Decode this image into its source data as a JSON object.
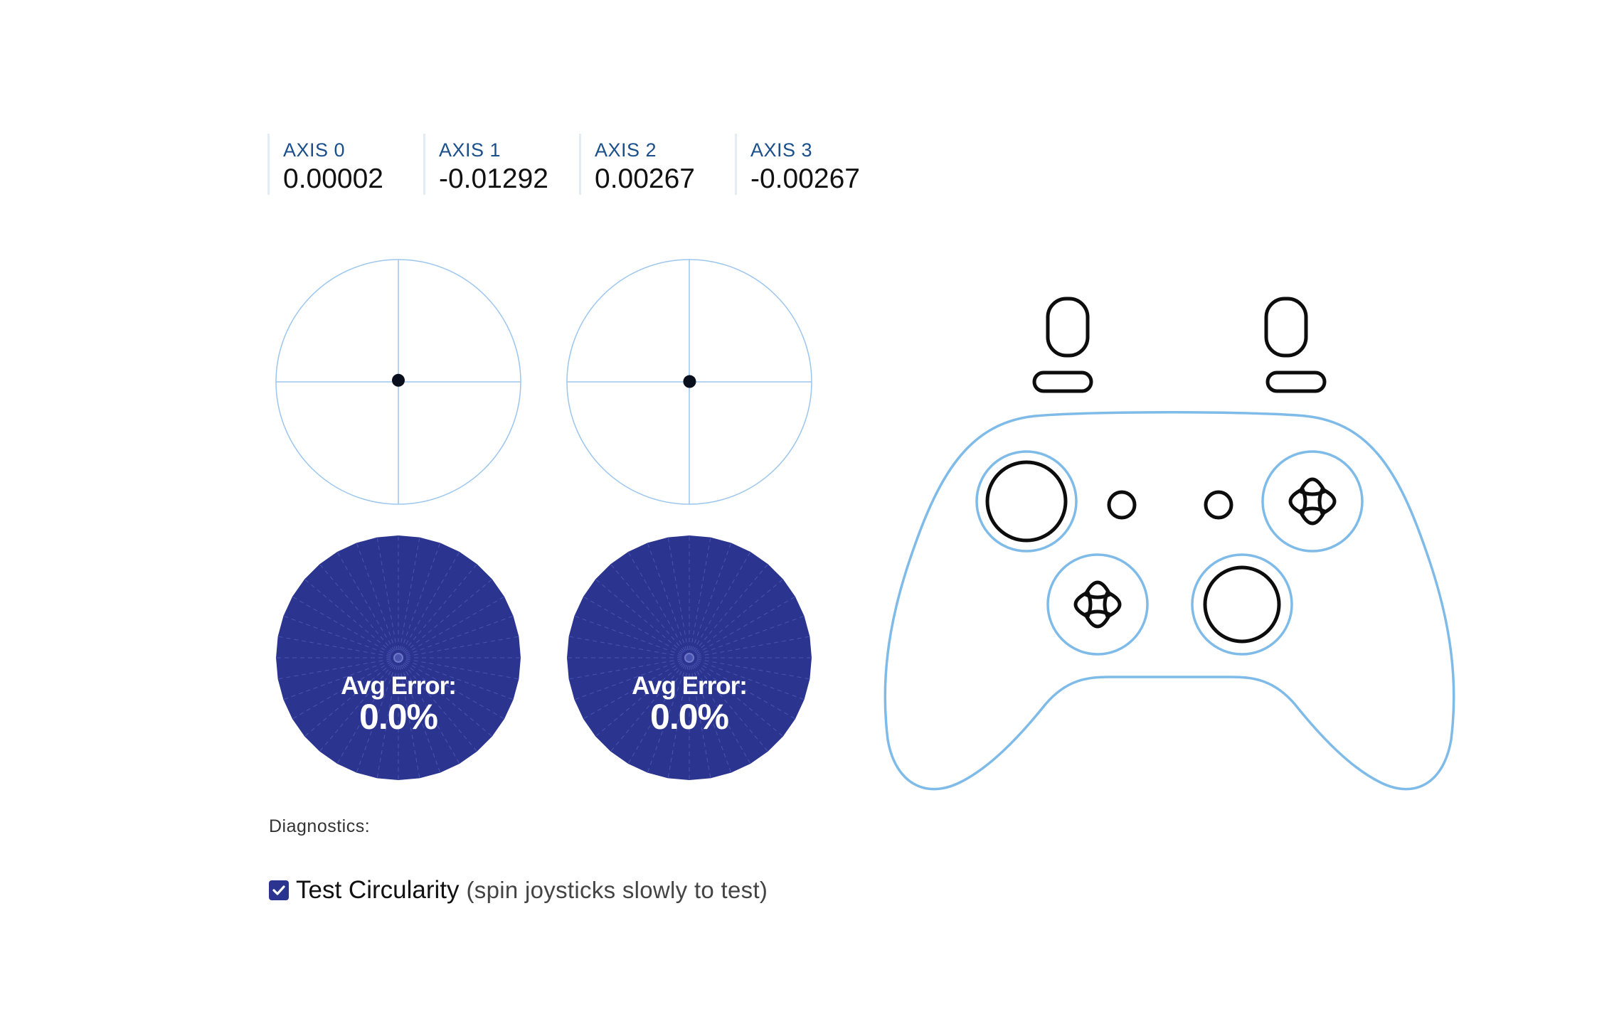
{
  "axes": [
    {
      "label": "AXIS 0",
      "value": "0.00002"
    },
    {
      "label": "AXIS 1",
      "value": "-0.01292"
    },
    {
      "label": "AXIS 2",
      "value": "0.00267"
    },
    {
      "label": "AXIS 3",
      "value": "-0.00267"
    }
  ],
  "sticks": {
    "left": {
      "x": 2e-05,
      "y": -0.01292
    },
    "right": {
      "x": 0.00267,
      "y": -0.00267
    }
  },
  "circularity": {
    "left": {
      "title": "Avg Error:",
      "value": "0.0%"
    },
    "right": {
      "title": "Avg Error:",
      "value": "0.0%"
    }
  },
  "diagnostics": {
    "label": "Diagnostics:",
    "test_circularity": {
      "checked": true,
      "title": "Test Circularity",
      "hint": "(spin joysticks slowly to test)"
    }
  },
  "colors": {
    "plot_line": "#9cc6ee",
    "dot": "#0a0f1e",
    "disc_fill": "#2b3590",
    "controller_outline": "#7fbbe8",
    "controller_buttons": "#0d0d0d",
    "axis_label": "#1b4f8a"
  },
  "icons": {
    "checkbox": "check-icon",
    "controller": "gamepad-icon"
  }
}
